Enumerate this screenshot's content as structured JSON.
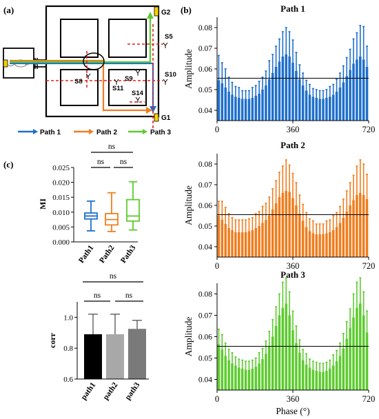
{
  "panel_labels": {
    "a": "(a)",
    "b": "(b)",
    "c": "(c)"
  },
  "maze": {
    "goals": [
      "G2",
      "G1"
    ],
    "stations": [
      "S5",
      "S8",
      "S9",
      "S10",
      "S11",
      "S14"
    ],
    "legend": [
      {
        "label": "Path 1",
        "color": "#1f6fcc"
      },
      {
        "label": "Path 2",
        "color": "#f07d1e"
      },
      {
        "label": "Path 3",
        "color": "#5ccb2e"
      }
    ]
  },
  "chart_data": [
    {
      "type": "bar",
      "title": "Path 1",
      "color": "#1f6fcc",
      "ylabel": "Amplitude",
      "xlabel": "",
      "xlim": [
        0,
        720
      ],
      "ylim": [
        0.035,
        0.085
      ],
      "xticks": [
        "0",
        "360",
        "720"
      ],
      "yticks": [
        "0.04",
        "0.05",
        "0.06",
        "0.07",
        "0.08"
      ],
      "mean_line": 0.0555,
      "values": [
        0.0545,
        0.053,
        0.051,
        0.049,
        0.0475,
        0.0465,
        0.046,
        0.0455,
        0.0455,
        0.0455,
        0.046,
        0.047,
        0.048,
        0.05,
        0.052,
        0.055,
        0.058,
        0.061,
        0.0635,
        0.066,
        0.067,
        0.066,
        0.063,
        0.059,
        0.055,
        0.052,
        0.0495,
        0.0475,
        0.0465,
        0.046,
        0.0455,
        0.0455,
        0.046,
        0.0465,
        0.0475,
        0.049,
        0.051,
        0.0535,
        0.0565,
        0.0595,
        0.0625,
        0.0645,
        0.066,
        0.0645,
        0.061
      ],
      "errors": [
        0.012,
        0.01,
        0.009,
        0.007,
        0.006,
        0.005,
        0.005,
        0.004,
        0.004,
        0.004,
        0.005,
        0.005,
        0.006,
        0.006,
        0.007,
        0.009,
        0.009,
        0.01,
        0.011,
        0.012,
        0.013,
        0.012,
        0.011,
        0.009,
        0.007,
        0.006,
        0.005,
        0.005,
        0.004,
        0.004,
        0.004,
        0.004,
        0.004,
        0.005,
        0.005,
        0.006,
        0.007,
        0.008,
        0.009,
        0.01,
        0.012,
        0.013,
        0.015,
        0.016,
        0.01
      ]
    },
    {
      "type": "bar",
      "title": "Path 2",
      "color": "#f07d1e",
      "ylabel": "Amplitude",
      "xlabel": "",
      "xlim": [
        0,
        720
      ],
      "ylim": [
        0.035,
        0.085
      ],
      "xticks": [
        "0",
        "360",
        "720"
      ],
      "yticks": [
        "0.04",
        "0.05",
        "0.06",
        "0.07",
        "0.08"
      ],
      "mean_line": 0.0555,
      "values": [
        0.055,
        0.053,
        0.051,
        0.049,
        0.048,
        0.047,
        0.047,
        0.047,
        0.047,
        0.0475,
        0.048,
        0.049,
        0.05,
        0.0515,
        0.053,
        0.055,
        0.058,
        0.061,
        0.064,
        0.066,
        0.067,
        0.0665,
        0.0635,
        0.06,
        0.056,
        0.0525,
        0.0495,
        0.0475,
        0.0465,
        0.046,
        0.046,
        0.046,
        0.0465,
        0.047,
        0.048,
        0.0495,
        0.0515,
        0.054,
        0.057,
        0.06,
        0.0625,
        0.065,
        0.066,
        0.065,
        0.063
      ],
      "errors": [
        0.007,
        0.009,
        0.008,
        0.007,
        0.006,
        0.006,
        0.006,
        0.006,
        0.006,
        0.006,
        0.006,
        0.007,
        0.007,
        0.008,
        0.008,
        0.009,
        0.01,
        0.011,
        0.012,
        0.013,
        0.015,
        0.013,
        0.012,
        0.011,
        0.009,
        0.008,
        0.007,
        0.006,
        0.006,
        0.005,
        0.005,
        0.005,
        0.006,
        0.006,
        0.007,
        0.007,
        0.008,
        0.009,
        0.01,
        0.011,
        0.012,
        0.014,
        0.016,
        0.015,
        0.012
      ]
    },
    {
      "type": "bar",
      "title": "Path 3",
      "color": "#5ccb2e",
      "ylabel": "Amplitude",
      "xlabel": "Phase (°)",
      "xlim": [
        0,
        720
      ],
      "ylim": [
        0.035,
        0.085
      ],
      "xticks": [
        "0",
        "360",
        "720"
      ],
      "yticks": [
        "0.04",
        "0.05",
        "0.06",
        "0.07",
        "0.08"
      ],
      "mean_line": 0.0555,
      "values": [
        0.0565,
        0.054,
        0.051,
        0.049,
        0.0475,
        0.0465,
        0.0455,
        0.045,
        0.0445,
        0.0445,
        0.045,
        0.046,
        0.0475,
        0.0495,
        0.052,
        0.0555,
        0.06,
        0.065,
        0.07,
        0.0735,
        0.0755,
        0.07,
        0.063,
        0.057,
        0.0525,
        0.049,
        0.047,
        0.0455,
        0.0445,
        0.044,
        0.0435,
        0.0435,
        0.044,
        0.045,
        0.0465,
        0.0485,
        0.051,
        0.0545,
        0.059,
        0.064,
        0.069,
        0.0735,
        0.0755,
        0.07,
        0.062
      ],
      "errors": [
        0.007,
        0.007,
        0.006,
        0.005,
        0.005,
        0.004,
        0.004,
        0.004,
        0.004,
        0.004,
        0.004,
        0.004,
        0.005,
        0.005,
        0.006,
        0.007,
        0.008,
        0.009,
        0.01,
        0.012,
        0.012,
        0.011,
        0.009,
        0.008,
        0.006,
        0.005,
        0.005,
        0.004,
        0.004,
        0.004,
        0.004,
        0.004,
        0.004,
        0.004,
        0.005,
        0.005,
        0.006,
        0.007,
        0.008,
        0.009,
        0.011,
        0.012,
        0.012,
        0.011,
        0.01
      ]
    },
    {
      "type": "box",
      "ylabel": "MI",
      "ylim": [
        0,
        0.025
      ],
      "yticks": [
        "0.000",
        "0.005",
        "0.010",
        "0.015",
        "0.020",
        "0.025"
      ],
      "categories": [
        "Path1",
        "Path2",
        "Path3"
      ],
      "colors": [
        "#1f6fcc",
        "#f07d1e",
        "#5ccb2e"
      ],
      "boxes": [
        {
          "min": 0.0037,
          "q1": 0.0077,
          "median": 0.0087,
          "q3": 0.0097,
          "max": 0.0137
        },
        {
          "min": 0.0035,
          "q1": 0.0057,
          "median": 0.0075,
          "q3": 0.0095,
          "max": 0.0165
        },
        {
          "min": 0.004,
          "q1": 0.007,
          "median": 0.0087,
          "q3": 0.0142,
          "max": 0.0202
        }
      ],
      "significance": [
        "ns",
        "ns",
        "ns"
      ]
    },
    {
      "type": "bar",
      "ylabel": "corr",
      "ylim": [
        0.6,
        1.1
      ],
      "yticks": [
        "0.6",
        "0.8",
        "1.0"
      ],
      "categories": [
        "path1",
        "path2",
        "path3"
      ],
      "colors": [
        "#000000",
        "#a8a8a8",
        "#7a7a7a"
      ],
      "values": [
        0.89,
        0.89,
        0.925
      ],
      "errors": [
        0.13,
        0.13,
        0.055
      ],
      "significance": [
        "ns",
        "ns",
        "ns"
      ]
    }
  ]
}
